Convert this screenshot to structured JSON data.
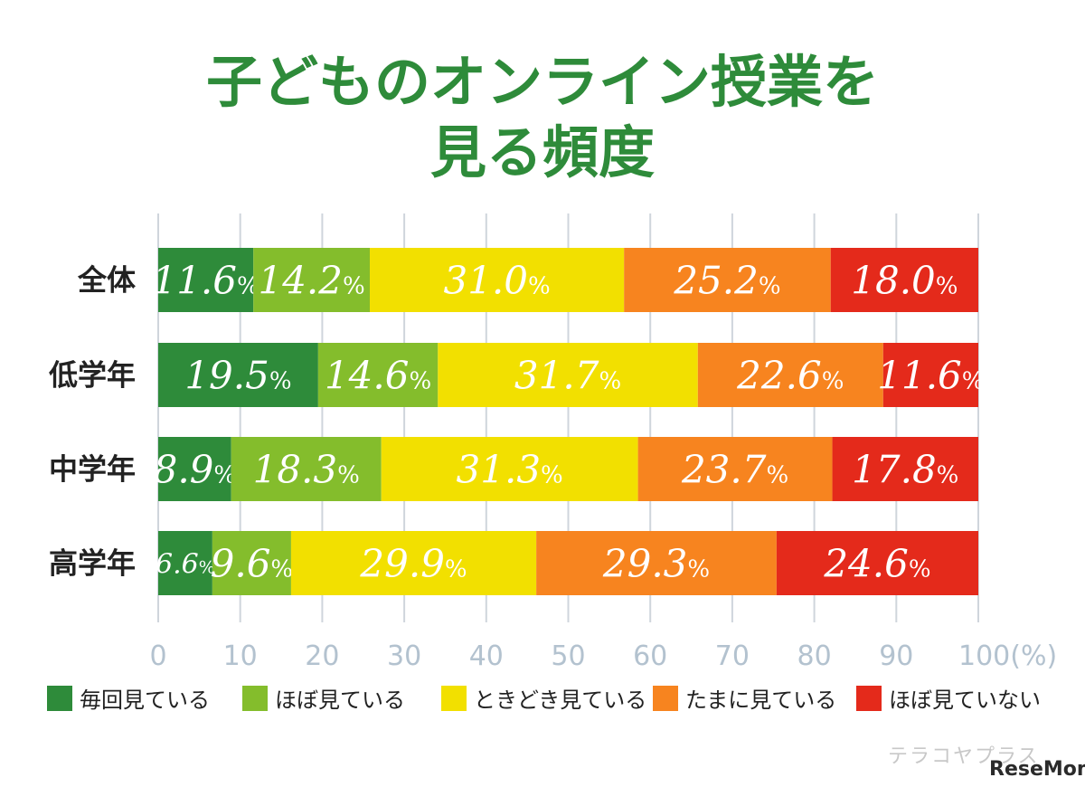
{
  "title_lines": [
    "子どものオンライン授業を",
    "見る頻度"
  ],
  "branding": {
    "main": "ReseMom",
    "sub": "テラコヤプラス"
  },
  "chart_data": {
    "type": "bar",
    "orientation": "horizontal",
    "stacked": true,
    "title": "子どものオンライン授業を見る頻度",
    "categories": [
      "全体",
      "低学年",
      "中学年",
      "高学年"
    ],
    "xlim": [
      0,
      100
    ],
    "x_ticks": [
      "0",
      "10",
      "20",
      "30",
      "40",
      "50",
      "60",
      "70",
      "80",
      "90",
      "100(%)"
    ],
    "grid": true,
    "legend_position": "bottom",
    "unit_suffix": "%",
    "series": [
      {
        "name": "毎回見ている",
        "color": "#2e8b3a",
        "values": [
          11.6,
          19.5,
          8.9,
          6.6
        ]
      },
      {
        "name": "ほぼ見ている",
        "color": "#84bd2c",
        "values": [
          14.2,
          14.6,
          18.3,
          9.6
        ]
      },
      {
        "name": "ときどき見ている",
        "color": "#f2e000",
        "values": [
          31.0,
          31.7,
          31.3,
          29.9
        ]
      },
      {
        "name": "たまに見ている",
        "color": "#f7841f",
        "values": [
          25.2,
          22.6,
          23.7,
          29.3
        ]
      },
      {
        "name": "ほぼ見ていない",
        "color": "#e42a1b",
        "values": [
          18.0,
          11.6,
          17.8,
          24.6
        ]
      }
    ]
  }
}
